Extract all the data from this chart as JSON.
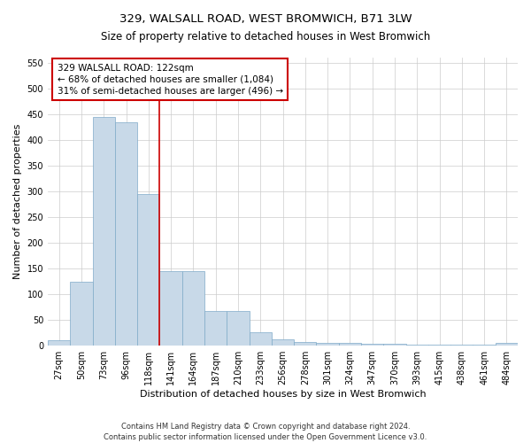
{
  "title": "329, WALSALL ROAD, WEST BROMWICH, B71 3LW",
  "subtitle": "Size of property relative to detached houses in West Bromwich",
  "xlabel": "Distribution of detached houses by size in West Bromwich",
  "ylabel": "Number of detached properties",
  "bar_labels": [
    "27sqm",
    "50sqm",
    "73sqm",
    "96sqm",
    "118sqm",
    "141sqm",
    "164sqm",
    "187sqm",
    "210sqm",
    "233sqm",
    "256sqm",
    "278sqm",
    "301sqm",
    "324sqm",
    "347sqm",
    "370sqm",
    "393sqm",
    "415sqm",
    "438sqm",
    "461sqm",
    "484sqm"
  ],
  "bar_heights": [
    10,
    125,
    445,
    435,
    295,
    145,
    145,
    68,
    68,
    27,
    12,
    8,
    6,
    5,
    4,
    3,
    2,
    2,
    2,
    2,
    6
  ],
  "bar_color": "#c8d9e8",
  "bar_edge_color": "#7faac8",
  "ylim": [
    0,
    560
  ],
  "yticks": [
    0,
    50,
    100,
    150,
    200,
    250,
    300,
    350,
    400,
    450,
    500,
    550
  ],
  "red_line_x": 4.5,
  "annotation_text": "329 WALSALL ROAD: 122sqm\n← 68% of detached houses are smaller (1,084)\n31% of semi-detached houses are larger (496) →",
  "annotation_box_color": "#ffffff",
  "annotation_box_edge": "#cc0000",
  "footer_line1": "Contains HM Land Registry data © Crown copyright and database right 2024.",
  "footer_line2": "Contains public sector information licensed under the Open Government Licence v3.0.",
  "grid_color": "#cccccc",
  "title_fontsize": 9.5,
  "axis_label_fontsize": 8,
  "tick_fontsize": 7,
  "annotation_fontsize": 7.5,
  "footer_fontsize": 6.0
}
